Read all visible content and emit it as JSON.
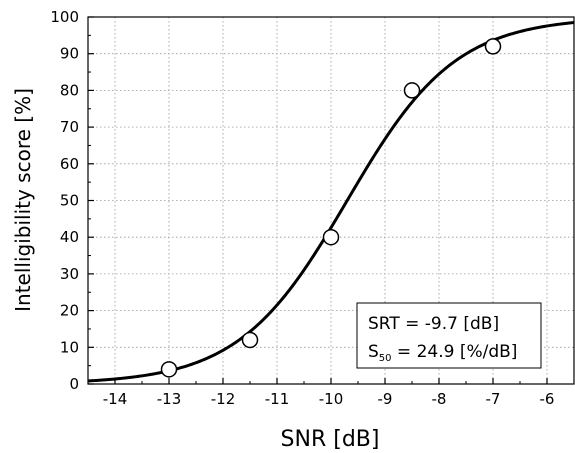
{
  "chart_data": {
    "type": "scatter",
    "xlabel": "SNR [dB]",
    "ylabel": "Intelligibility score [%]",
    "xlim": [
      -14.5,
      -5.5
    ],
    "ylim": [
      0,
      100
    ],
    "x_ticks": [
      "-14",
      "-13",
      "-12",
      "-11",
      "-10",
      "-9",
      "-8",
      "-7",
      "-6"
    ],
    "y_ticks": [
      "0",
      "10",
      "20",
      "30",
      "40",
      "50",
      "60",
      "70",
      "80",
      "90",
      "100"
    ],
    "grid": true,
    "series": [
      {
        "marker": "open-circle",
        "points": [
          {
            "x": -13.0,
            "y": 4
          },
          {
            "x": -11.5,
            "y": 12
          },
          {
            "x": -10.0,
            "y": 40
          },
          {
            "x": -8.5,
            "y": 80
          },
          {
            "x": -7.0,
            "y": 92
          }
        ]
      },
      {
        "line": "logistic-fit",
        "srt": -9.7,
        "s50": 24.9
      }
    ],
    "annotation": {
      "line1": "SRT = -9.7 [dB]",
      "line2_prefix": "S",
      "line2_sub": "50",
      "line2_rest": " = 24.9 [%/dB]"
    }
  }
}
